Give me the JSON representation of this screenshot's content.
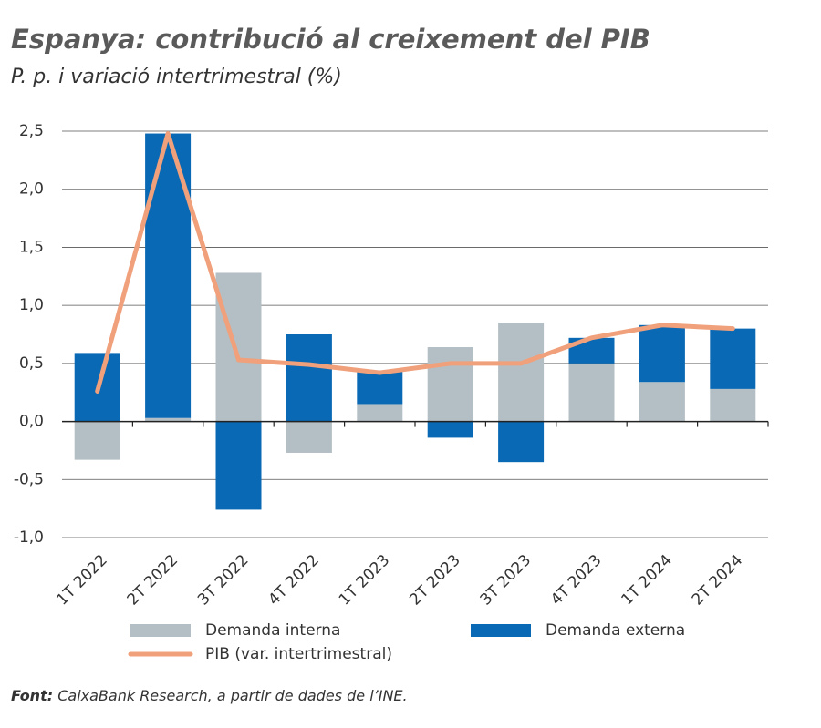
{
  "chart_data": {
    "type": "stacked_bar_line",
    "title": "Espanya: contribució al creixement del PIB",
    "subtitle": "P. p. i variació intertrimestral (%)",
    "source_label": "Font:",
    "source": "CaixaBank Research, a partir de dades de l’INE.",
    "categories": [
      "1T 2022",
      "2T 2022",
      "3T 2022",
      "4T 2022",
      "1T 2023",
      "2T 2023",
      "3T 2023",
      "4T 2023",
      "1T 2024",
      "2T 2024"
    ],
    "series": [
      {
        "name": "Demanda interna",
        "color": "#b4bfc5",
        "kind": "bar",
        "values": [
          -0.33,
          0.03,
          1.28,
          -0.27,
          0.15,
          0.64,
          0.85,
          0.5,
          0.34,
          0.28
        ]
      },
      {
        "name": "Demanda externa",
        "color": "#0a69b4",
        "kind": "bar",
        "values": [
          0.59,
          2.45,
          -0.76,
          0.75,
          0.29,
          -0.14,
          -0.35,
          0.22,
          0.49,
          0.52
        ]
      },
      {
        "name": "PIB (var. intertrimestral)",
        "color": "#f0a07b",
        "kind": "line",
        "values": [
          0.26,
          2.48,
          0.53,
          0.49,
          0.42,
          0.5,
          0.5,
          0.72,
          0.83,
          0.8
        ]
      }
    ],
    "ylim": [
      -1.0,
      2.5
    ],
    "yticks": [
      {
        "value": -1.0,
        "label": "-1,0"
      },
      {
        "value": -0.5,
        "label": "-0,5"
      },
      {
        "value": 0,
        "label": "0,0"
      },
      {
        "value": 0.5,
        "label": "0,5"
      },
      {
        "value": 1.0,
        "label": "1,0"
      },
      {
        "value": 1.5,
        "label": "1,5"
      },
      {
        "value": 2.0,
        "label": "2,0"
      },
      {
        "value": 2.5,
        "label": "2,5"
      }
    ],
    "grid": true
  }
}
